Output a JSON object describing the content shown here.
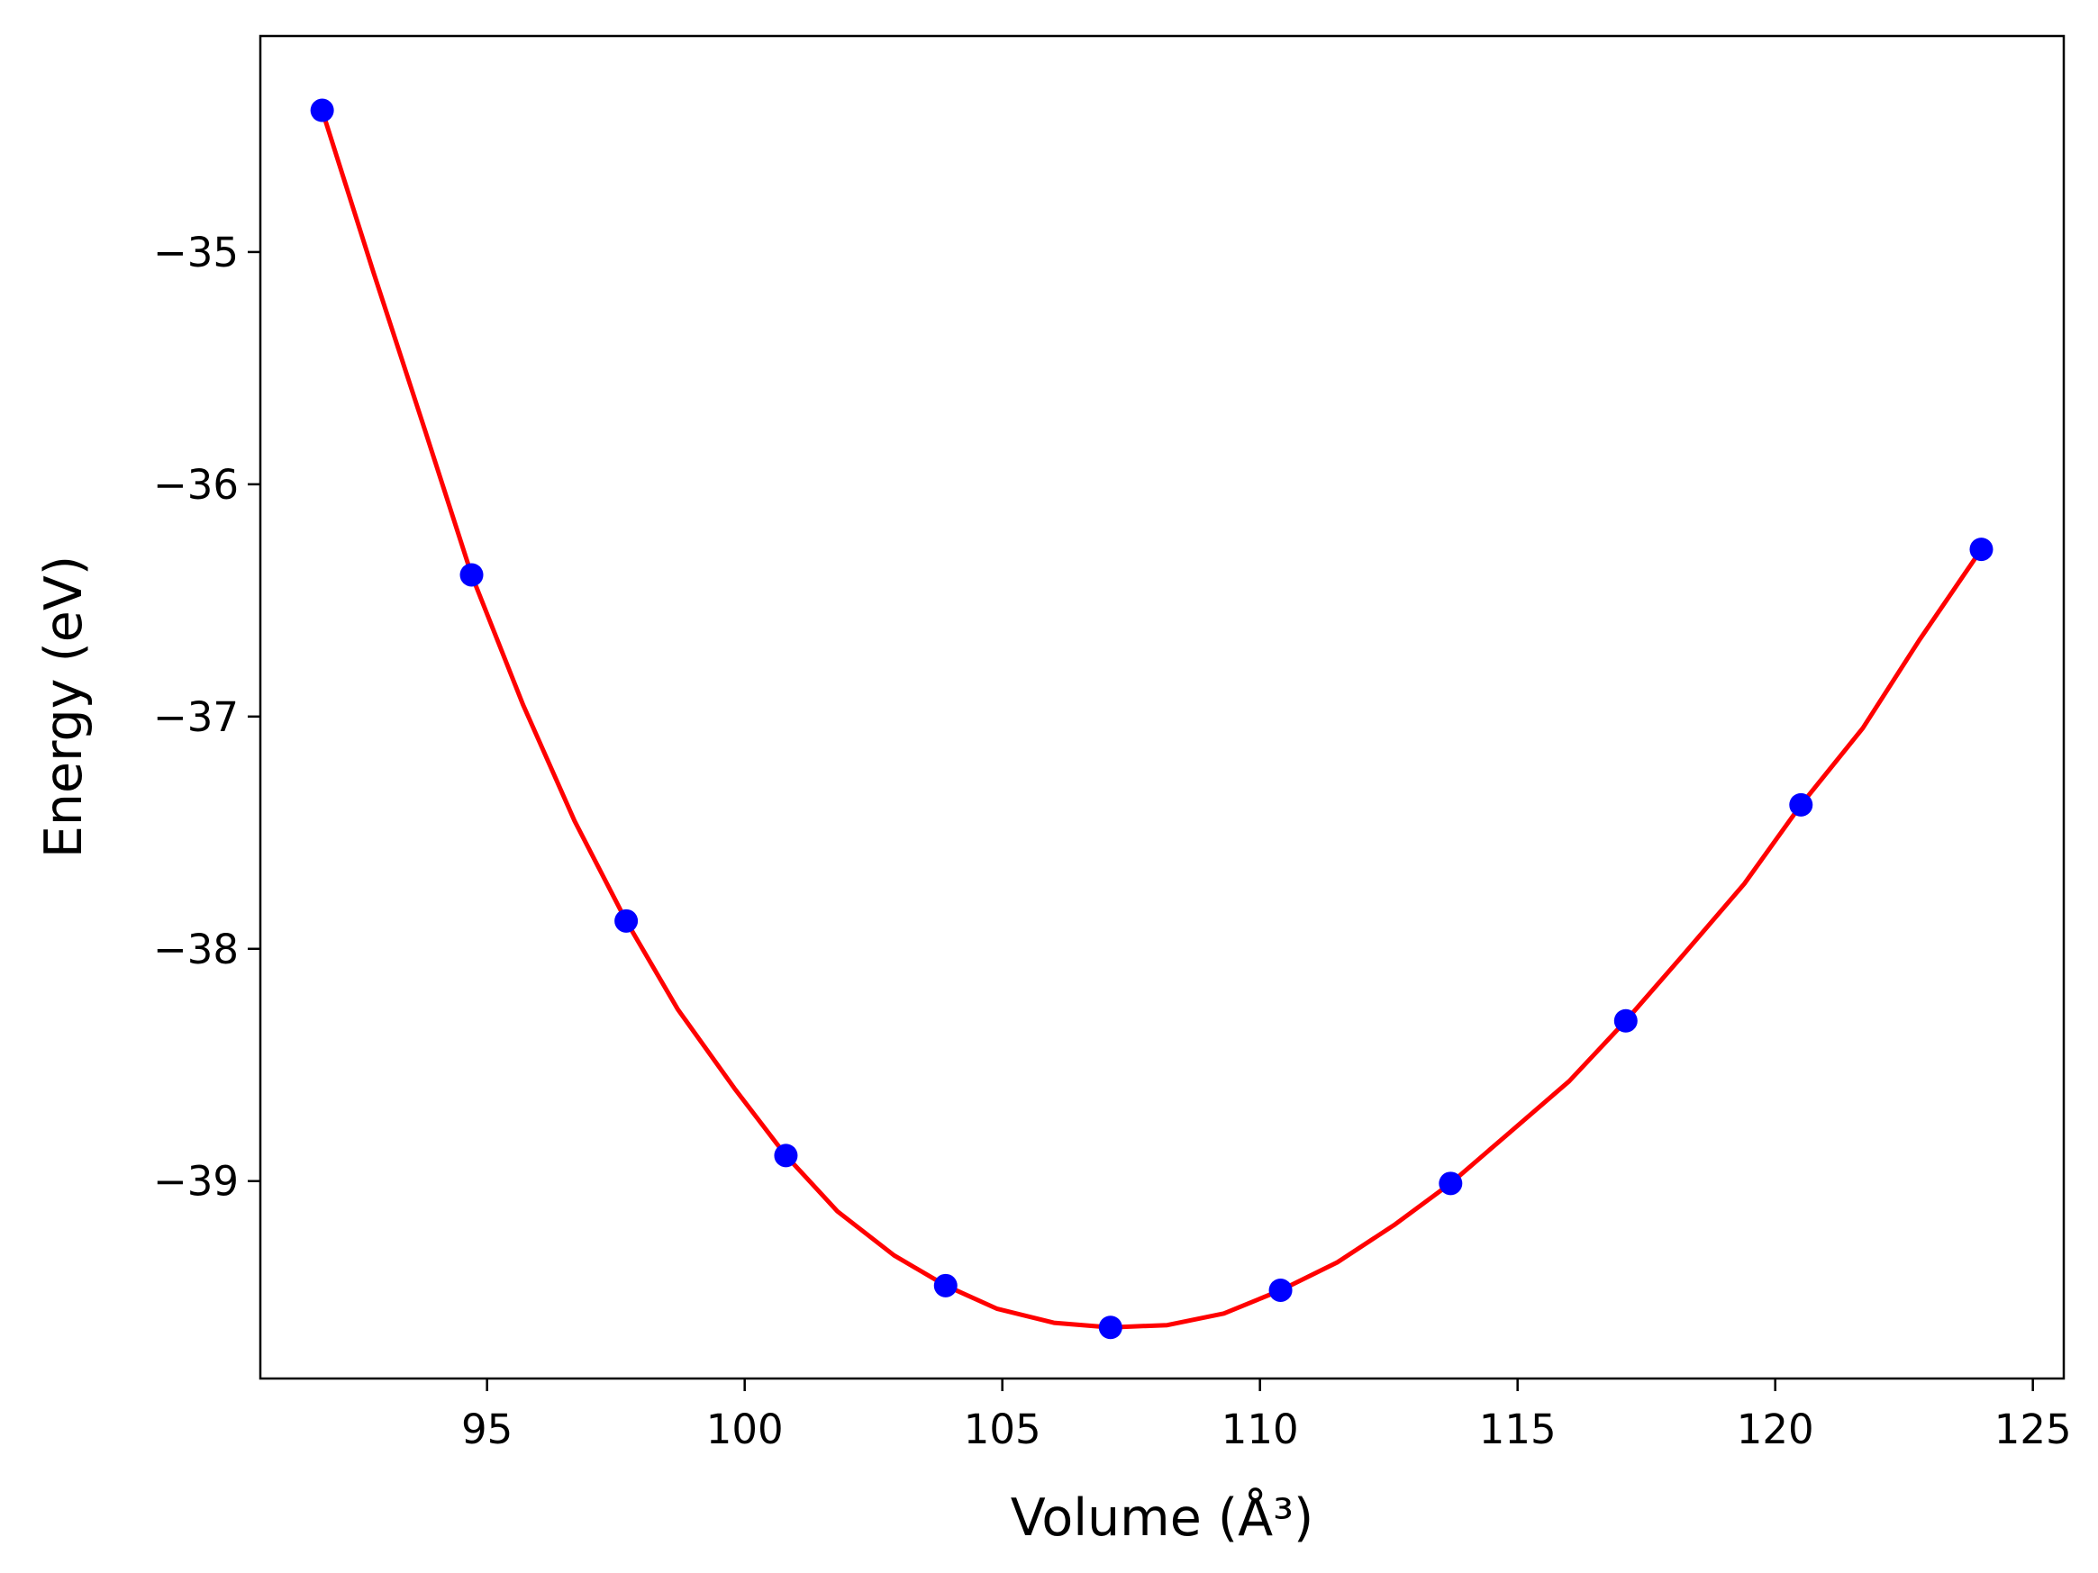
{
  "chart_data": {
    "type": "scatter",
    "xlabel": "Volume (Å³)",
    "ylabel": "Energy (eV)",
    "xlim": [
      90.6,
      125.6
    ],
    "ylim": [
      -39.85,
      -34.07
    ],
    "xticks": [
      95,
      100,
      105,
      110,
      115,
      120,
      125
    ],
    "yticks": [
      -35,
      -36,
      -37,
      -38,
      -39
    ],
    "xtick_labels": [
      "95",
      "100",
      "105",
      "110",
      "115",
      "120",
      "125"
    ],
    "ytick_labels": [
      "−35",
      "−36",
      "−37",
      "−38",
      "−39"
    ],
    "grid": false,
    "legend": "none",
    "series": [
      {
        "kind": "points",
        "color": "#0000ff",
        "x": [
          91.8,
          94.7,
          97.7,
          100.8,
          103.9,
          107.1,
          110.4,
          113.7,
          117.1,
          120.5,
          124.0
        ],
        "y": [
          -34.39,
          -36.39,
          -37.88,
          -38.89,
          -39.45,
          -39.63,
          -39.47,
          -39.01,
          -38.31,
          -37.38,
          -36.28
        ]
      },
      {
        "kind": "fit-curve",
        "color": "#ff0000",
        "x": [
          91.8,
          92.8,
          93.8,
          94.7,
          95.7,
          96.7,
          97.7,
          98.7,
          99.8,
          100.8,
          101.8,
          102.9,
          103.9,
          104.9,
          106.0,
          107.1,
          108.2,
          109.3,
          110.4,
          111.5,
          112.6,
          113.7,
          114.8,
          116.0,
          117.1,
          118.2,
          119.4,
          120.5,
          121.7,
          122.8,
          124.0
        ],
        "y": [
          -34.39,
          -35.09,
          -35.77,
          -36.39,
          -36.95,
          -37.45,
          -37.88,
          -38.26,
          -38.6,
          -38.89,
          -39.13,
          -39.32,
          -39.45,
          -39.55,
          -39.61,
          -39.63,
          -39.62,
          -39.57,
          -39.47,
          -39.35,
          -39.19,
          -39.01,
          -38.8,
          -38.57,
          -38.31,
          -38.03,
          -37.72,
          -37.38,
          -37.05,
          -36.67,
          -36.28
        ]
      }
    ]
  }
}
